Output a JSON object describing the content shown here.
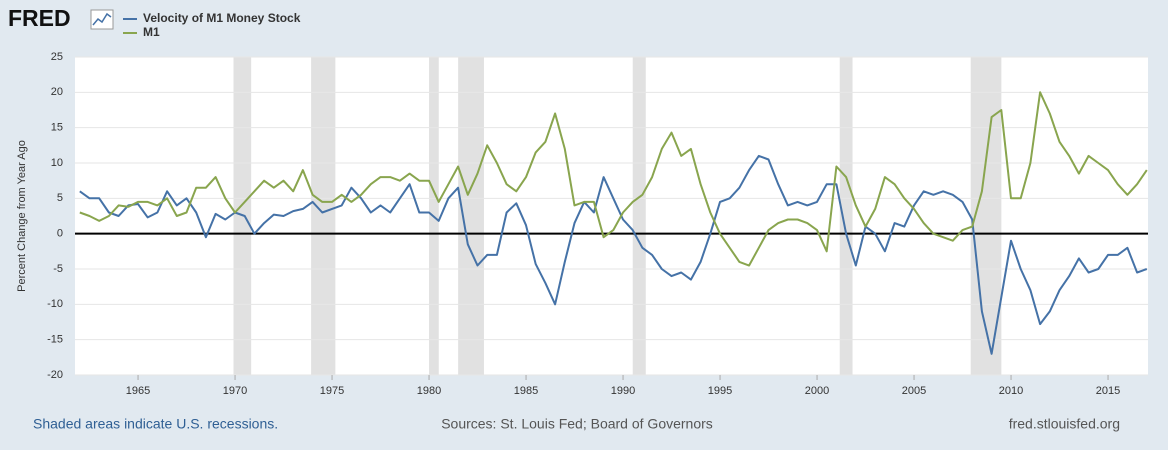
{
  "chart_data": {
    "type": "line",
    "logo": "FRED",
    "ylabel": "Percent Change from Year Ago",
    "notes": {
      "left": "Shaded areas indicate U.S. recessions.",
      "center": "Sources: St. Louis Fed; Board of Governors",
      "right": "fred.stlouisfed.org"
    },
    "x": [
      1962,
      1962.5,
      1963,
      1963.5,
      1964,
      1964.5,
      1965,
      1965.5,
      1966,
      1966.5,
      1967,
      1967.5,
      1968,
      1968.5,
      1969,
      1969.5,
      1970,
      1970.5,
      1971,
      1971.5,
      1972,
      1972.5,
      1973,
      1973.5,
      1974,
      1974.5,
      1975,
      1975.5,
      1976,
      1976.5,
      1977,
      1977.5,
      1978,
      1978.5,
      1979,
      1979.5,
      1980,
      1980.5,
      1981,
      1981.5,
      1982,
      1982.5,
      1983,
      1983.5,
      1984,
      1984.5,
      1985,
      1985.5,
      1986,
      1986.5,
      1987,
      1987.5,
      1988,
      1988.5,
      1989,
      1989.5,
      1990,
      1990.5,
      1991,
      1991.5,
      1992,
      1992.5,
      1993,
      1993.5,
      1994,
      1994.5,
      1995,
      1995.5,
      1996,
      1996.5,
      1997,
      1997.5,
      1998,
      1998.5,
      1999,
      1999.5,
      2000,
      2000.5,
      2001,
      2001.5,
      2002,
      2002.5,
      2003,
      2003.5,
      2004,
      2004.5,
      2005,
      2005.5,
      2006,
      2006.5,
      2007,
      2007.5,
      2008,
      2008.5,
      2009,
      2009.5,
      2010,
      2010.5,
      2011,
      2011.5,
      2012,
      2012.5,
      2013,
      2013.5,
      2014,
      2014.5,
      2015,
      2015.5,
      2016,
      2016.5,
      2017
    ],
    "series": [
      {
        "name": "Velocity of M1 Money Stock",
        "color": "#4572a7",
        "values": [
          6,
          5,
          5,
          3,
          2.5,
          4,
          4.2,
          2.3,
          3,
          6,
          4,
          5,
          3,
          -0.5,
          2.8,
          2,
          3,
          2.5,
          0,
          1.5,
          2.7,
          2.5,
          3.2,
          3.5,
          4.5,
          3,
          3.5,
          4,
          6.5,
          5,
          3,
          4,
          3,
          5,
          7,
          3,
          3,
          1.8,
          5,
          6.5,
          -1.5,
          -4.5,
          -3,
          -3,
          3,
          4.3,
          1.2,
          -4.3,
          -7,
          -10,
          -4,
          1.5,
          4.5,
          3,
          8,
          5,
          2,
          0.5,
          -2,
          -3,
          -5,
          -6,
          -5.5,
          -6.5,
          -4,
          0,
          4.5,
          5,
          6.5,
          9,
          11,
          10.5,
          7,
          4,
          4.5,
          4,
          4.5,
          7,
          7,
          0,
          -4.5,
          1,
          0,
          -2.5,
          1.5,
          1,
          4,
          6,
          5.5,
          6,
          5.5,
          4.5,
          2,
          -11,
          -17,
          -9,
          -1,
          -5,
          -8,
          -12.8,
          -11,
          -8,
          -6,
          -3.5,
          -5.5,
          -5,
          -3,
          -3,
          -2,
          -5.5,
          -5
        ]
      },
      {
        "name": "M1",
        "color": "#89a54e",
        "values": [
          3,
          2.5,
          1.8,
          2.5,
          4,
          3.8,
          4.5,
          4.5,
          4,
          5,
          2.5,
          3,
          6.5,
          6.5,
          8,
          5,
          3,
          4.5,
          6,
          7.5,
          6.5,
          7.5,
          6,
          9,
          5.5,
          4.5,
          4.5,
          5.5,
          4.5,
          5.5,
          7,
          8,
          8,
          7.5,
          8.5,
          7.5,
          7.5,
          4.5,
          7,
          9.5,
          5.5,
          8.5,
          12.5,
          10,
          7,
          6,
          8,
          11.5,
          13,
          17,
          12,
          4,
          4.5,
          4.5,
          -0.5,
          0.5,
          3,
          4.5,
          5.5,
          8,
          12,
          14.3,
          11,
          12,
          7,
          3,
          0,
          -2,
          -4,
          -4.5,
          -2,
          0.5,
          1.5,
          2,
          2,
          1.5,
          0.5,
          -2.5,
          9.5,
          8,
          4,
          1,
          3.5,
          8,
          7,
          5,
          3.5,
          1.5,
          0,
          -0.5,
          -1,
          0.5,
          1,
          6,
          16.5,
          17.5,
          5,
          5,
          10,
          20,
          17,
          13,
          11,
          8.5,
          11,
          10,
          9,
          7,
          5.5,
          7,
          9
        ]
      }
    ],
    "recessions": [
      [
        1969.92,
        1970.83
      ],
      [
        1973.92,
        1975.17
      ],
      [
        1980.0,
        1980.5
      ],
      [
        1981.5,
        1982.83
      ],
      [
        1990.5,
        1991.17
      ],
      [
        2001.17,
        2001.83
      ],
      [
        2007.92,
        2009.5
      ]
    ],
    "xlim": [
      1961.75,
      2017.06
    ],
    "xticks": [
      1965,
      1970,
      1975,
      1980,
      1985,
      1990,
      1995,
      2000,
      2005,
      2010,
      2015
    ],
    "ylim": [
      -20,
      25
    ],
    "yticks": [
      -20,
      -15,
      -10,
      -5,
      0,
      5,
      10,
      15,
      20,
      25
    ],
    "grid": true,
    "zero_line": true
  }
}
